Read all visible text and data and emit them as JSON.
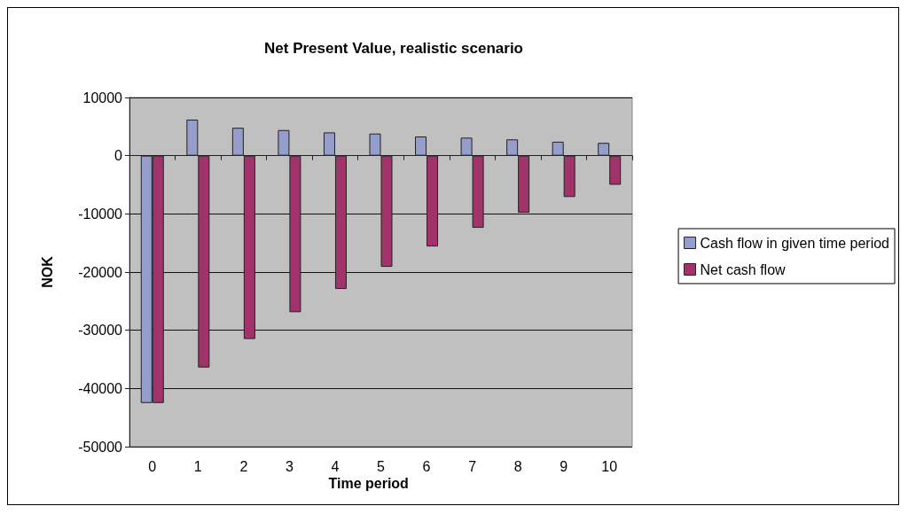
{
  "chart_data": {
    "type": "bar",
    "title": "Net Present Value, realistic scenario",
    "xlabel": "Time period",
    "ylabel": "NOK",
    "categories": [
      "0",
      "1",
      "2",
      "3",
      "4",
      "5",
      "6",
      "7",
      "8",
      "9",
      "10"
    ],
    "series": [
      {
        "name": "Cash flow in given time period",
        "color": "#959dcb",
        "values": [
          -42500,
          6200,
          4800,
          4400,
          4000,
          3800,
          3300,
          3100,
          2800,
          2400,
          2200
        ]
      },
      {
        "name": "Net cash flow",
        "color": "#a0346a",
        "values": [
          -42500,
          -36400,
          -31500,
          -26900,
          -22900,
          -19100,
          -15600,
          -12400,
          -9800,
          -7100,
          -5000
        ]
      }
    ],
    "ylim": [
      -50000,
      10000
    ],
    "yticks": [
      -50000,
      -40000,
      -30000,
      -20000,
      -10000,
      0,
      10000
    ],
    "grid": "y",
    "legend": "right"
  }
}
